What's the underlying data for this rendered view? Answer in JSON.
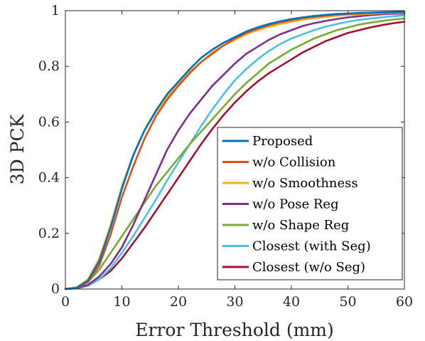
{
  "chart_data": {
    "type": "line",
    "title": "",
    "xlabel": "Error Threshold (mm)",
    "ylabel": "3D PCK",
    "xlim": [
      0,
      60
    ],
    "ylim": [
      0,
      1
    ],
    "xticks": [
      "0",
      "10",
      "20",
      "30",
      "40",
      "50",
      "60"
    ],
    "yticks": [
      "0",
      "0.2",
      "0.4",
      "0.6",
      "0.8",
      "1"
    ],
    "grid": false,
    "legend_position": "bottom-right",
    "x": [
      0,
      2,
      4,
      6,
      8,
      10,
      12,
      14,
      16,
      18,
      20,
      22,
      24,
      26,
      28,
      30,
      32,
      34,
      36,
      38,
      40,
      42,
      44,
      46,
      48,
      50,
      52,
      54,
      56,
      58,
      60
    ],
    "series": [
      {
        "name": "Proposed",
        "color": "#0072BD",
        "values": [
          0,
          0.005,
          0.03,
          0.1,
          0.22,
          0.36,
          0.48,
          0.57,
          0.64,
          0.7,
          0.745,
          0.79,
          0.83,
          0.86,
          0.885,
          0.905,
          0.925,
          0.94,
          0.952,
          0.962,
          0.97,
          0.976,
          0.981,
          0.985,
          0.988,
          0.99,
          0.992,
          0.993,
          0.994,
          0.995,
          0.996
        ]
      },
      {
        "name": "w/o Collision",
        "color": "#D95319",
        "values": [
          0,
          0.004,
          0.025,
          0.085,
          0.195,
          0.33,
          0.44,
          0.54,
          0.62,
          0.68,
          0.73,
          0.775,
          0.815,
          0.845,
          0.875,
          0.9,
          0.92,
          0.935,
          0.948,
          0.958,
          0.966,
          0.973,
          0.978,
          0.982,
          0.986,
          0.988,
          0.99,
          0.992,
          0.993,
          0.994,
          0.995
        ]
      },
      {
        "name": "w/o Smoothness",
        "color": "#EDB120",
        "values": [
          0,
          0.006,
          0.035,
          0.11,
          0.23,
          0.37,
          0.48,
          0.57,
          0.635,
          0.69,
          0.735,
          0.78,
          0.815,
          0.85,
          0.875,
          0.895,
          0.915,
          0.93,
          0.942,
          0.952,
          0.96,
          0.967,
          0.973,
          0.978,
          0.982,
          0.985,
          0.987,
          0.989,
          0.991,
          0.992,
          0.993
        ]
      },
      {
        "name": "w/o Pose Reg",
        "color": "#7E2F8E",
        "values": [
          0,
          0.003,
          0.015,
          0.045,
          0.09,
          0.15,
          0.23,
          0.32,
          0.41,
          0.5,
          0.57,
          0.63,
          0.68,
          0.73,
          0.77,
          0.81,
          0.845,
          0.87,
          0.895,
          0.915,
          0.93,
          0.945,
          0.955,
          0.963,
          0.97,
          0.976,
          0.98,
          0.984,
          0.987,
          0.989,
          0.99
        ]
      },
      {
        "name": "w/o Shape Reg",
        "color": "#77AC30",
        "values": [
          0,
          0.005,
          0.025,
          0.07,
          0.13,
          0.19,
          0.25,
          0.31,
          0.37,
          0.42,
          0.47,
          0.52,
          0.565,
          0.61,
          0.655,
          0.7,
          0.74,
          0.775,
          0.81,
          0.835,
          0.86,
          0.88,
          0.9,
          0.915,
          0.93,
          0.94,
          0.95,
          0.957,
          0.963,
          0.968,
          0.972
        ]
      },
      {
        "name": "Closest (with Seg)",
        "color": "#4DBEEE",
        "values": [
          0,
          0.003,
          0.012,
          0.035,
          0.075,
          0.13,
          0.19,
          0.255,
          0.32,
          0.39,
          0.455,
          0.52,
          0.585,
          0.645,
          0.7,
          0.75,
          0.79,
          0.825,
          0.855,
          0.88,
          0.9,
          0.915,
          0.93,
          0.942,
          0.952,
          0.96,
          0.967,
          0.972,
          0.976,
          0.98,
          0.983
        ]
      },
      {
        "name": "Closest (w/o Seg)",
        "color": "#A2142F",
        "values": [
          0,
          0.003,
          0.012,
          0.035,
          0.065,
          0.11,
          0.165,
          0.22,
          0.28,
          0.34,
          0.4,
          0.46,
          0.52,
          0.575,
          0.625,
          0.67,
          0.71,
          0.745,
          0.775,
          0.8,
          0.825,
          0.85,
          0.87,
          0.89,
          0.905,
          0.92,
          0.93,
          0.94,
          0.948,
          0.955,
          0.96
        ]
      }
    ]
  }
}
